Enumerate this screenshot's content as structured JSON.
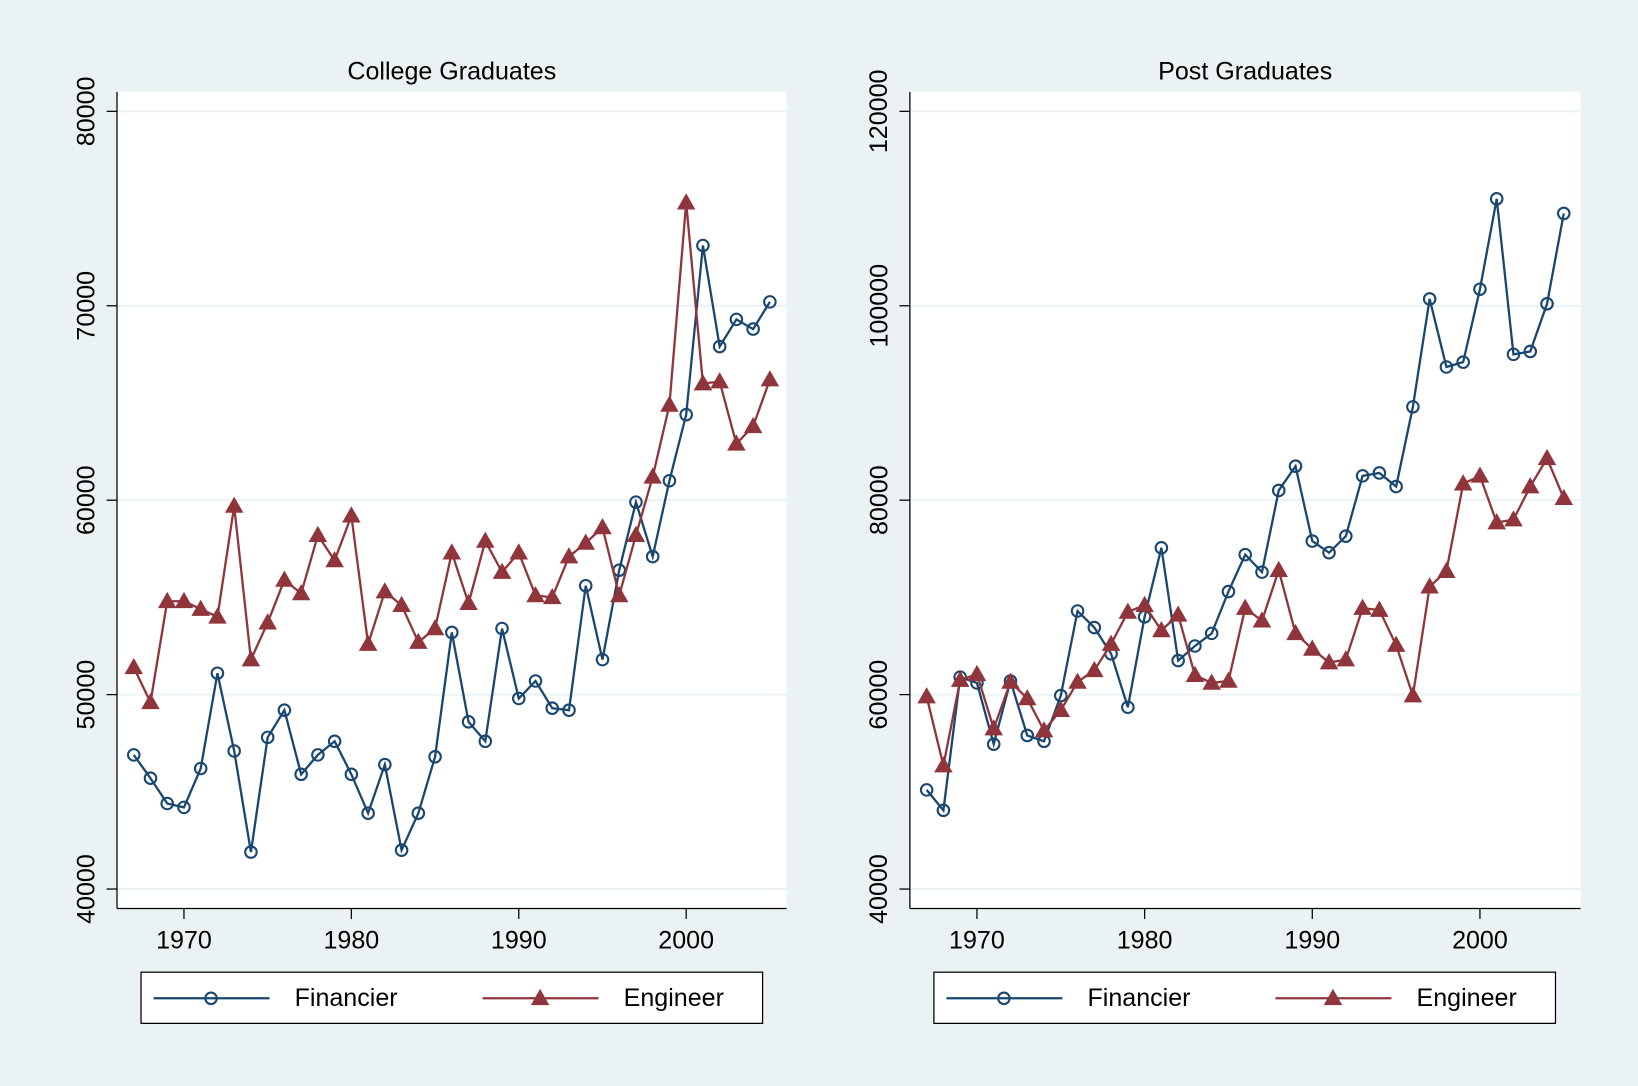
{
  "chart_data": [
    {
      "type": "line",
      "title": "College Graduates",
      "x": [
        1967,
        1968,
        1969,
        1970,
        1971,
        1972,
        1973,
        1974,
        1975,
        1976,
        1977,
        1978,
        1979,
        1980,
        1981,
        1982,
        1983,
        1984,
        1985,
        1986,
        1987,
        1988,
        1989,
        1990,
        1991,
        1992,
        1993,
        1994,
        1995,
        1996,
        1997,
        1998,
        1999,
        2000,
        2001,
        2002,
        2003,
        2004,
        2005
      ],
      "series": [
        {
          "name": "Financier",
          "color": "#1a476f",
          "marker": "circle",
          "values": [
            46900,
            45700,
            44400,
            44200,
            46200,
            51100,
            47100,
            41900,
            47800,
            49200,
            45900,
            46900,
            47600,
            45900,
            43900,
            46400,
            42000,
            43900,
            46800,
            53200,
            48600,
            47600,
            53400,
            49800,
            50700,
            49300,
            49200,
            55600,
            51800,
            56400,
            59900,
            57100,
            61000,
            64400,
            73100,
            67900,
            69300,
            68800,
            70200
          ]
        },
        {
          "name": "Engineer",
          "color": "#90353b",
          "marker": "triangle",
          "values": [
            51400,
            49600,
            54800,
            54800,
            54400,
            54000,
            59700,
            51800,
            53700,
            55900,
            55200,
            58200,
            56900,
            59200,
            52600,
            55300,
            54600,
            52700,
            53400,
            57300,
            54700,
            57900,
            56300,
            57300,
            55100,
            55000,
            57100,
            57800,
            58600,
            55100,
            58200,
            61200,
            64900,
            75300,
            66000,
            66100,
            62900,
            63800,
            66200
          ]
        }
      ],
      "xlim": [
        1966,
        2006
      ],
      "ylim": [
        39000,
        81000
      ],
      "xticks": [
        1970,
        1980,
        1990,
        2000
      ],
      "yticks": [
        40000,
        50000,
        60000,
        70000,
        80000
      ],
      "grid": true,
      "legend": "bottom"
    },
    {
      "type": "line",
      "title": "Post Graduates",
      "x": [
        1967,
        1968,
        1969,
        1970,
        1971,
        1972,
        1973,
        1974,
        1975,
        1976,
        1977,
        1978,
        1979,
        1980,
        1981,
        1982,
        1983,
        1984,
        1985,
        1986,
        1987,
        1988,
        1989,
        1990,
        1991,
        1992,
        1993,
        1994,
        1995,
        1996,
        1997,
        1998,
        1999,
        2000,
        2001,
        2002,
        2003,
        2004,
        2005
      ],
      "series": [
        {
          "name": "Financier",
          "color": "#1a476f",
          "marker": "circle",
          "values": [
            50200,
            48100,
            61800,
            61200,
            54900,
            61400,
            55800,
            55200,
            59900,
            68600,
            66900,
            64200,
            58700,
            68000,
            75100,
            63500,
            65000,
            66300,
            70600,
            74400,
            72600,
            81000,
            83500,
            75800,
            74600,
            76300,
            82500,
            82800,
            81400,
            89600,
            100700,
            93700,
            94200,
            101700,
            111000,
            95000,
            95300,
            100200,
            109500
          ]
        },
        {
          "name": "Engineer",
          "color": "#90353b",
          "marker": "triangle",
          "values": [
            59800,
            52700,
            61500,
            62100,
            56500,
            61300,
            59600,
            56300,
            58400,
            61300,
            62500,
            65200,
            68500,
            69200,
            66600,
            68200,
            62000,
            61200,
            61400,
            68900,
            67600,
            72800,
            66300,
            64700,
            63300,
            63600,
            68900,
            68700,
            65100,
            59900,
            71100,
            72700,
            81700,
            82500,
            77700,
            78000,
            81400,
            84300,
            80200
          ]
        }
      ],
      "xlim": [
        1966,
        2006
      ],
      "ylim": [
        38000,
        122000
      ],
      "xticks": [
        1970,
        1980,
        1990,
        2000
      ],
      "yticks": [
        40000,
        60000,
        80000,
        100000,
        120000
      ],
      "grid": true,
      "legend": "bottom"
    }
  ]
}
